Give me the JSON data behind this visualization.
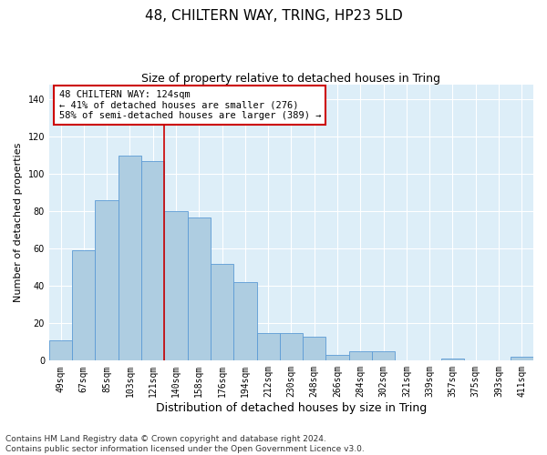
{
  "title": "48, CHILTERN WAY, TRING, HP23 5LD",
  "subtitle": "Size of property relative to detached houses in Tring",
  "xlabel": "Distribution of detached houses by size in Tring",
  "ylabel": "Number of detached properties",
  "categories": [
    "49sqm",
    "67sqm",
    "85sqm",
    "103sqm",
    "121sqm",
    "140sqm",
    "158sqm",
    "176sqm",
    "194sqm",
    "212sqm",
    "230sqm",
    "248sqm",
    "266sqm",
    "284sqm",
    "302sqm",
    "321sqm",
    "339sqm",
    "357sqm",
    "375sqm",
    "393sqm",
    "411sqm"
  ],
  "values": [
    11,
    59,
    86,
    110,
    107,
    80,
    77,
    52,
    42,
    15,
    15,
    13,
    3,
    5,
    5,
    0,
    0,
    1,
    0,
    0,
    2
  ],
  "bar_color": "#aecde1",
  "bar_edge_color": "#5b9bd5",
  "bar_width": 1.0,
  "vline_x": 4.5,
  "vline_color": "#cc0000",
  "annotation_text": "48 CHILTERN WAY: 124sqm\n← 41% of detached houses are smaller (276)\n58% of semi-detached houses are larger (389) →",
  "annotation_box_color": "#ffffff",
  "annotation_box_edge_color": "#cc0000",
  "ylim": [
    0,
    148
  ],
  "yticks": [
    0,
    20,
    40,
    60,
    80,
    100,
    120,
    140
  ],
  "background_color": "#ddeef8",
  "grid_color": "#ffffff",
  "footer_text": "Contains HM Land Registry data © Crown copyright and database right 2024.\nContains public sector information licensed under the Open Government Licence v3.0.",
  "title_fontsize": 11,
  "subtitle_fontsize": 9,
  "xlabel_fontsize": 9,
  "ylabel_fontsize": 8,
  "tick_fontsize": 7,
  "annotation_fontsize": 7.5,
  "footer_fontsize": 6.5
}
